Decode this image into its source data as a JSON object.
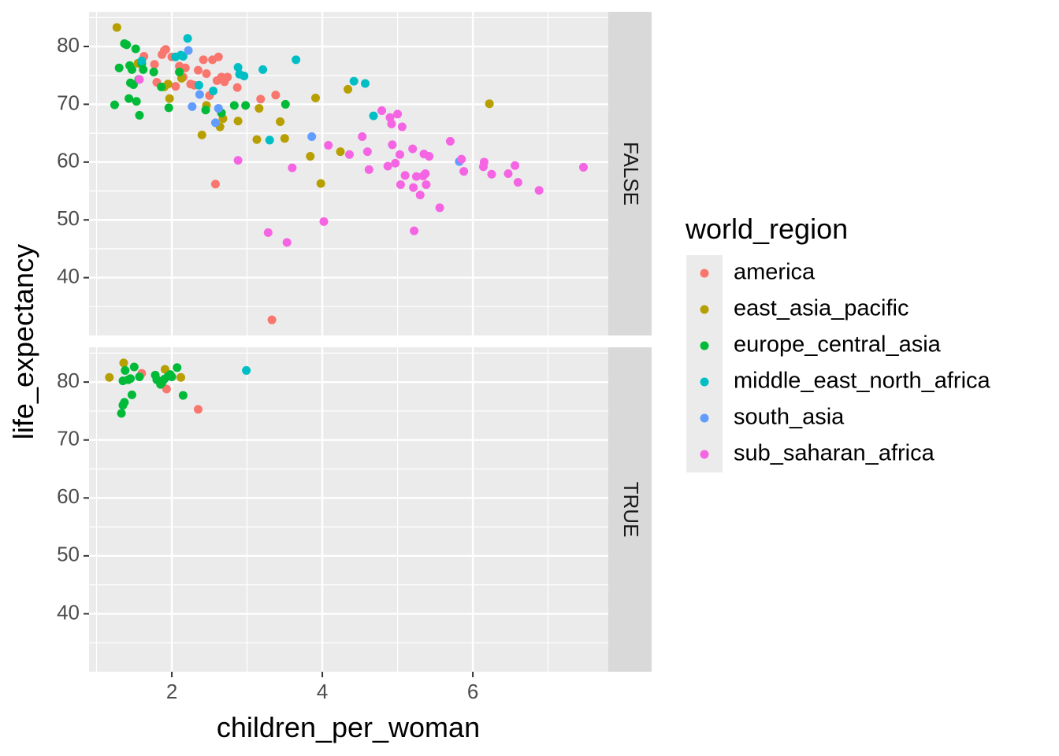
{
  "chart_data": {
    "type": "scatter",
    "xlabel": "children_per_woman",
    "ylabel": "life_expectancy",
    "xlim": [
      0.9,
      7.8
    ],
    "ylim": [
      30,
      86
    ],
    "x_ticks": [
      2,
      4,
      6
    ],
    "y_ticks": [
      40,
      50,
      60,
      70,
      80
    ],
    "grid": true,
    "facet_variable": "high_income",
    "facets": [
      "FALSE",
      "TRUE"
    ],
    "legend": {
      "title": "world_region",
      "position": "right",
      "entries": [
        {
          "name": "america",
          "color": "#F8766D"
        },
        {
          "name": "east_asia_pacific",
          "color": "#B79F00"
        },
        {
          "name": "europe_central_asia",
          "color": "#00BA38"
        },
        {
          "name": "middle_east_north_africa",
          "color": "#00BFC4"
        },
        {
          "name": "south_asia",
          "color": "#619CFF"
        },
        {
          "name": "sub_saharan_africa",
          "color": "#F564E3"
        }
      ]
    },
    "series": [
      {
        "facet": "FALSE",
        "region": "america",
        "points": [
          [
            1.6,
            77
          ],
          [
            1.63,
            78.3
          ],
          [
            1.77,
            76.9
          ],
          [
            1.8,
            73.8
          ],
          [
            1.87,
            78.6
          ],
          [
            1.9,
            79.3
          ],
          [
            1.92,
            79.5
          ],
          [
            2.0,
            78.2
          ],
          [
            2.05,
            73.1
          ],
          [
            2.1,
            76.6
          ],
          [
            2.15,
            74.7
          ],
          [
            2.18,
            76.3
          ],
          [
            2.25,
            73.5
          ],
          [
            2.3,
            73.3
          ],
          [
            2.35,
            75.9
          ],
          [
            2.42,
            77.7
          ],
          [
            2.46,
            75.3
          ],
          [
            2.5,
            71.5
          ],
          [
            2.54,
            77.7
          ],
          [
            2.6,
            74.1
          ],
          [
            2.62,
            78.2
          ],
          [
            2.66,
            74.7
          ],
          [
            2.7,
            73.9
          ],
          [
            2.74,
            74.7
          ],
          [
            2.87,
            72.9
          ],
          [
            3.18,
            70.9
          ],
          [
            3.38,
            71.6
          ],
          [
            2.58,
            56.2
          ],
          [
            3.33,
            32.7
          ]
        ]
      },
      {
        "facet": "FALSE",
        "region": "east_asia_pacific",
        "points": [
          [
            1.27,
            83.3
          ],
          [
            1.55,
            77.1
          ],
          [
            1.9,
            73
          ],
          [
            1.95,
            73.5
          ],
          [
            1.97,
            71
          ],
          [
            2.13,
            74.5
          ],
          [
            2.4,
            64.7
          ],
          [
            2.46,
            69.8
          ],
          [
            2.64,
            66.1
          ],
          [
            2.68,
            67.5
          ],
          [
            2.88,
            67.1
          ],
          [
            3.13,
            63.9
          ],
          [
            3.16,
            69.3
          ],
          [
            3.44,
            67
          ],
          [
            3.5,
            64.1
          ],
          [
            3.84,
            61
          ],
          [
            3.91,
            71.1
          ],
          [
            3.98,
            56.3
          ],
          [
            4.24,
            61.8
          ],
          [
            4.34,
            72.6
          ],
          [
            6.22,
            70.1
          ]
        ]
      },
      {
        "facet": "FALSE",
        "region": "europe_central_asia",
        "points": [
          [
            1.24,
            69.9
          ],
          [
            1.3,
            76.3
          ],
          [
            1.37,
            80.5
          ],
          [
            1.4,
            80.3
          ],
          [
            1.43,
            71
          ],
          [
            1.44,
            76.7
          ],
          [
            1.45,
            73.7
          ],
          [
            1.47,
            76
          ],
          [
            1.49,
            73.4
          ],
          [
            1.52,
            79.6
          ],
          [
            1.53,
            70.5
          ],
          [
            1.56,
            74.3
          ],
          [
            1.57,
            68.1
          ],
          [
            1.6,
            77.1
          ],
          [
            1.62,
            76
          ],
          [
            1.76,
            75.6
          ],
          [
            1.86,
            73
          ],
          [
            1.96,
            69.4
          ],
          [
            2.1,
            75.6
          ],
          [
            2.45,
            69
          ],
          [
            2.66,
            68.5
          ],
          [
            2.83,
            69.8
          ],
          [
            2.98,
            69.8
          ],
          [
            3.51,
            70
          ]
        ]
      },
      {
        "facet": "FALSE",
        "region": "middle_east_north_africa",
        "points": [
          [
            1.6,
            77.5
          ],
          [
            2.05,
            78.2
          ],
          [
            2.12,
            78.5
          ],
          [
            2.15,
            78.3
          ],
          [
            2.21,
            81.4
          ],
          [
            2.36,
            73.3
          ],
          [
            2.55,
            72.3
          ],
          [
            2.88,
            76.4
          ],
          [
            2.9,
            75.2
          ],
          [
            2.96,
            74.9
          ],
          [
            3.21,
            76
          ],
          [
            3.3,
            63.8
          ],
          [
            3.65,
            77.7
          ],
          [
            4.42,
            74
          ],
          [
            4.57,
            73.6
          ],
          [
            4.68,
            68
          ]
        ]
      },
      {
        "facet": "FALSE",
        "region": "south_asia",
        "points": [
          [
            2.22,
            79.3
          ],
          [
            2.27,
            69.6
          ],
          [
            2.37,
            71.7
          ],
          [
            2.58,
            66.8
          ],
          [
            2.62,
            69.3
          ],
          [
            3.86,
            64.4
          ],
          [
            5.82,
            60.1
          ]
        ]
      },
      {
        "facet": "FALSE",
        "region": "sub_saharan_africa",
        "points": [
          [
            1.57,
            74.3
          ],
          [
            2.88,
            60.3
          ],
          [
            3.28,
            47.8
          ],
          [
            3.53,
            46.1
          ],
          [
            3.6,
            59
          ],
          [
            4.02,
            49.7
          ],
          [
            4.08,
            62.9
          ],
          [
            4.36,
            61.3
          ],
          [
            4.53,
            64.4
          ],
          [
            4.6,
            61.8
          ],
          [
            4.62,
            58.7
          ],
          [
            4.79,
            68.9
          ],
          [
            4.87,
            59.3
          ],
          [
            4.9,
            67.7
          ],
          [
            4.92,
            66.6
          ],
          [
            4.93,
            63
          ],
          [
            4.97,
            59.8
          ],
          [
            5.0,
            68.3
          ],
          [
            5.03,
            61.3
          ],
          [
            5.04,
            56.1
          ],
          [
            5.06,
            66.1
          ],
          [
            5.1,
            57.7
          ],
          [
            5.2,
            62.3
          ],
          [
            5.21,
            55.6
          ],
          [
            5.22,
            48.1
          ],
          [
            5.25,
            57.5
          ],
          [
            5.3,
            54.3
          ],
          [
            5.34,
            57.6
          ],
          [
            5.35,
            61.4
          ],
          [
            5.37,
            58
          ],
          [
            5.38,
            56.1
          ],
          [
            5.42,
            61
          ],
          [
            5.56,
            52.1
          ],
          [
            5.7,
            63.6
          ],
          [
            5.85,
            60.5
          ],
          [
            5.88,
            58.4
          ],
          [
            6.14,
            59.2
          ],
          [
            6.15,
            60
          ],
          [
            6.25,
            57.9
          ],
          [
            6.47,
            58
          ],
          [
            6.56,
            59.4
          ],
          [
            6.6,
            56.5
          ],
          [
            6.88,
            55.1
          ],
          [
            7.47,
            59.1
          ]
        ]
      },
      {
        "facet": "TRUE",
        "region": "america",
        "points": [
          [
            1.6,
            81.5
          ],
          [
            1.93,
            78.8
          ],
          [
            2.35,
            75.3
          ]
        ]
      },
      {
        "facet": "TRUE",
        "region": "east_asia_pacific",
        "points": [
          [
            1.17,
            80.8
          ],
          [
            1.36,
            83.3
          ],
          [
            1.91,
            82.2
          ],
          [
            2.12,
            80.8
          ]
        ]
      },
      {
        "facet": "TRUE",
        "region": "europe_central_asia",
        "points": [
          [
            1.33,
            74.6
          ],
          [
            1.35,
            76
          ],
          [
            1.37,
            76.5
          ],
          [
            1.35,
            80.2
          ],
          [
            1.38,
            82
          ],
          [
            1.42,
            80.4
          ],
          [
            1.45,
            80.6
          ],
          [
            1.47,
            77.8
          ],
          [
            1.5,
            82.6
          ],
          [
            1.57,
            80.9
          ],
          [
            1.78,
            81.2
          ],
          [
            1.8,
            80.4
          ],
          [
            1.85,
            79.6
          ],
          [
            1.87,
            79.9
          ],
          [
            1.9,
            80.5
          ],
          [
            1.95,
            81
          ],
          [
            1.98,
            81.3
          ],
          [
            2.0,
            80.9
          ],
          [
            2.07,
            82.5
          ],
          [
            2.15,
            77.7
          ]
        ]
      },
      {
        "facet": "TRUE",
        "region": "middle_east_north_africa",
        "points": [
          [
            2.99,
            82
          ]
        ]
      }
    ]
  }
}
